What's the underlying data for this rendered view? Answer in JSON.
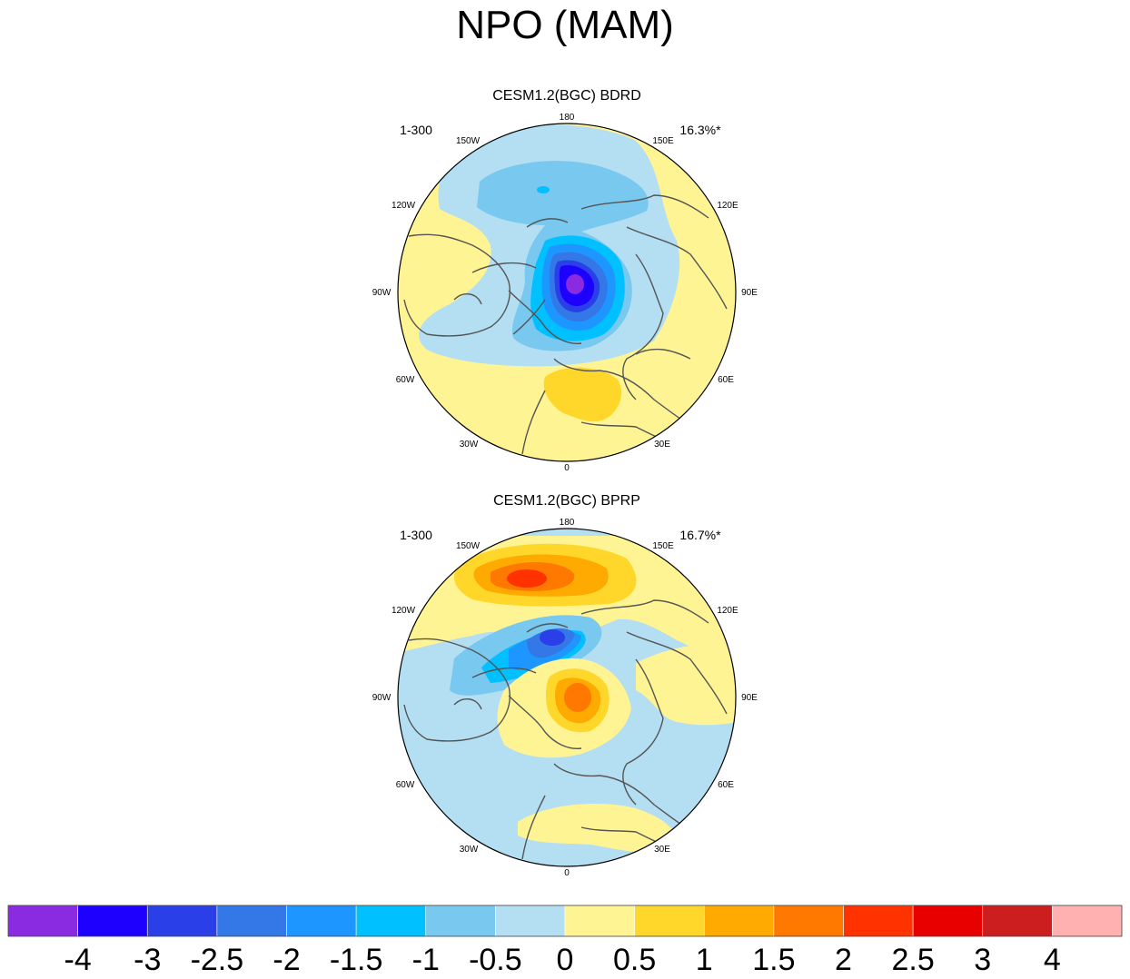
{
  "figure": {
    "title": "NPO (MAM)"
  },
  "panels": [
    {
      "title": "CESM1.2(BGC) BDRD",
      "left_label": "1-300",
      "right_label": "16.3%*",
      "lon_labels": {
        "lbl_180": "180",
        "lbl_150e": "150E",
        "lbl_120e": "120E",
        "lbl_90e": "90E",
        "lbl_60e": "60E",
        "lbl_30e": "30E",
        "lbl_0": "0",
        "lbl_30w": "30W",
        "lbl_60w": "60W",
        "lbl_90w": "90W",
        "lbl_120w": "120W",
        "lbl_150w": "150W"
      }
    },
    {
      "title": "CESM1.2(BGC) BPRP",
      "left_label": "1-300",
      "right_label": "16.7%*",
      "lon_labels": {
        "lbl_180": "180",
        "lbl_150e": "150E",
        "lbl_120e": "120E",
        "lbl_90e": "90E",
        "lbl_60e": "60E",
        "lbl_30e": "30E",
        "lbl_0": "0",
        "lbl_30w": "30W",
        "lbl_60w": "60W",
        "lbl_90w": "90W",
        "lbl_120w": "120W",
        "lbl_150w": "150W"
      }
    }
  ],
  "colorbar": {
    "colors": [
      "#8a2be2",
      "#1e00ff",
      "#2a3fe8",
      "#3478e8",
      "#1e96ff",
      "#00c0ff",
      "#78c8f0",
      "#b4def2",
      "#fff494",
      "#ffd62a",
      "#ffaa00",
      "#ff7800",
      "#ff3200",
      "#e80000",
      "#cc1e1e",
      "#ffb0b0"
    ],
    "labels": [
      "-4",
      "-3",
      "-2.5",
      "-2",
      "-1.5",
      "-1",
      "-0.5",
      "0",
      "0.5",
      "1",
      "1.5",
      "2",
      "2.5",
      "3",
      "4"
    ]
  },
  "palette": {
    "land_outline": "#555555",
    "map_border": "#000000"
  }
}
